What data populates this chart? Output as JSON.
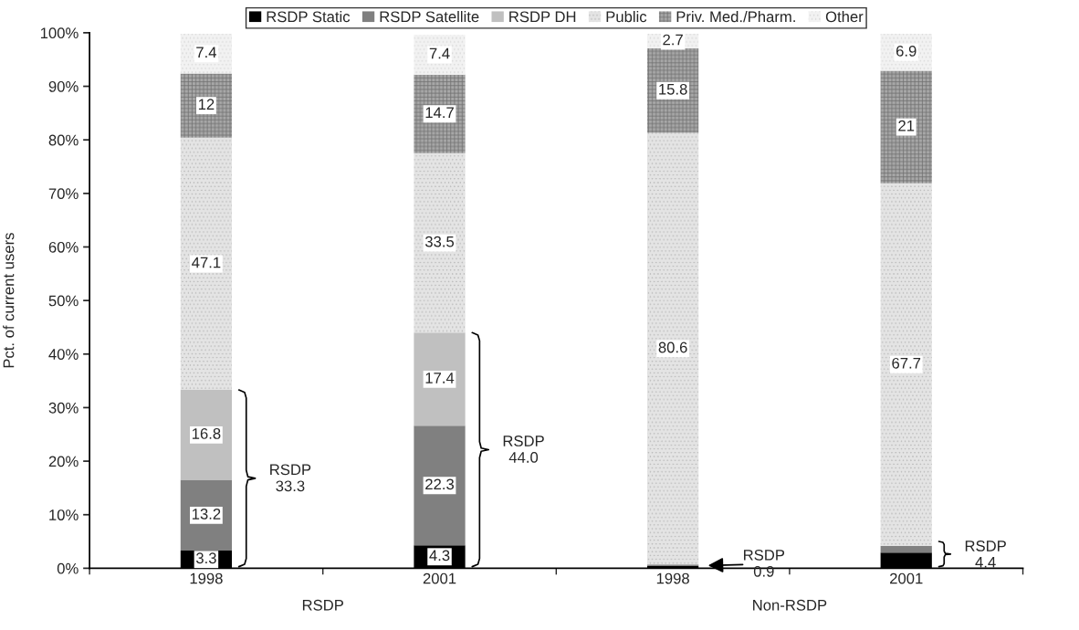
{
  "chart_data": {
    "type": "bar",
    "stacked": true,
    "ylabel": "Pct. of current users",
    "categories": [
      "1998",
      "2001",
      "1998",
      "2001"
    ],
    "series": [
      {
        "name": "RSDP Static",
        "color": "#000000",
        "values": [
          3.3,
          4.3,
          0.4,
          2.9
        ],
        "value_labels": [
          "3.3",
          "4.3",
          null,
          null
        ]
      },
      {
        "name": "RSDP Satellite",
        "color": "#808080",
        "values": [
          13.2,
          22.3,
          0.3,
          1.3
        ],
        "value_labels": [
          "13.2",
          "22.3",
          null,
          null
        ]
      },
      {
        "name": "RSDP DH",
        "color": "#c0c0c0",
        "values": [
          16.8,
          17.4,
          null,
          null
        ],
        "value_labels": [
          "16.8",
          "17.4",
          null,
          null
        ]
      },
      {
        "name": "Public",
        "color": "#e4e4e4",
        "values": [
          47.1,
          33.5,
          80.6,
          67.7
        ],
        "value_labels": [
          "47.1",
          "33.5",
          "80.6",
          "67.7"
        ]
      },
      {
        "name": "Priv. Med./Pharm.",
        "color": "#a8a8a8",
        "values": [
          12,
          14.7,
          15.8,
          21
        ],
        "value_labels": [
          "12",
          "14.7",
          "15.8",
          "21"
        ]
      },
      {
        "name": "Other",
        "color": "#f2f2f2",
        "values": [
          7.4,
          7.4,
          2.7,
          6.9
        ],
        "value_labels": [
          "7.4",
          "7.4",
          "2.7",
          "6.9"
        ]
      }
    ],
    "ylim": [
      0,
      100
    ],
    "yticks": [
      {
        "value": 0,
        "label": "0%"
      },
      {
        "value": 10,
        "label": "10%"
      },
      {
        "value": 20,
        "label": "20%"
      },
      {
        "value": 30,
        "label": "30%"
      },
      {
        "value": 40,
        "label": "40%"
      },
      {
        "value": 50,
        "label": "50%"
      },
      {
        "value": 60,
        "label": "60%"
      },
      {
        "value": 70,
        "label": "70%"
      },
      {
        "value": 80,
        "label": "80%"
      },
      {
        "value": 90,
        "label": "90%"
      },
      {
        "value": 100,
        "label": "100%"
      }
    ],
    "annotations": [
      "RSDP\n33.3",
      "RSDP\n44.0",
      "RSDP\n0.9",
      "RSDP\n4.4",
      "RSDP",
      "Non-RSDP"
    ],
    "grid": false,
    "legend": "top"
  }
}
